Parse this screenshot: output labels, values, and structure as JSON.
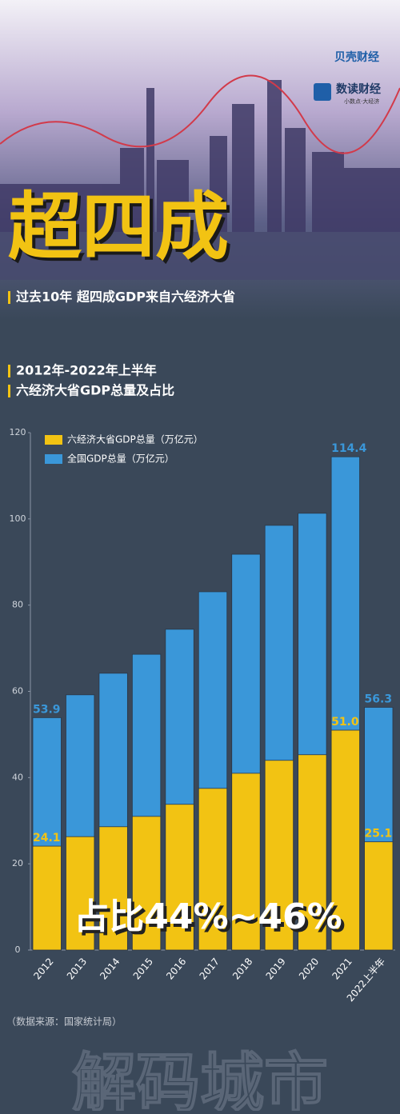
{
  "header": {
    "logo1": "贝壳财经",
    "logo2": "数读财经",
    "logo2_sub": "小数点·大经济",
    "title": "超四成",
    "subtitle": "过去10年 超四成GDP来自六经济大省"
  },
  "section": {
    "line1": "2012年-2022年上半年",
    "line2": "六经济大省GDP总量及占比"
  },
  "chart_data": {
    "type": "bar",
    "barmode": "overlay",
    "categories": [
      "2012",
      "2013",
      "2014",
      "2015",
      "2016",
      "2017",
      "2018",
      "2019",
      "2020",
      "2021",
      "2022上半年"
    ],
    "series": [
      {
        "name": "六经济大省GDP总量（万亿元）",
        "color": "#f2c313",
        "label_color": "#f2c313",
        "values": [
          24.1,
          26.3,
          28.6,
          31.0,
          33.8,
          37.5,
          41.0,
          44.0,
          45.3,
          51.0,
          25.1
        ],
        "value_labels": [
          "24.1",
          null,
          null,
          null,
          null,
          null,
          null,
          null,
          null,
          "51.0",
          "25.1"
        ]
      },
      {
        "name": "全国GDP总量（万亿元）",
        "color": "#3a97d9",
        "label_color": "#3a97d9",
        "values": [
          53.9,
          59.2,
          64.2,
          68.6,
          74.4,
          83.1,
          91.8,
          98.5,
          101.3,
          114.4,
          56.3
        ],
        "value_labels": [
          "53.9",
          null,
          null,
          null,
          null,
          null,
          null,
          null,
          null,
          "114.4",
          "56.3"
        ]
      }
    ],
    "ylim": [
      0,
      120
    ],
    "yticks": [
      0,
      20,
      40,
      60,
      80,
      100,
      120
    ],
    "annotation": "占比44%~46%"
  },
  "footer": {
    "source": "（数据来源：国家统计局）",
    "watermark": "解码城市"
  }
}
